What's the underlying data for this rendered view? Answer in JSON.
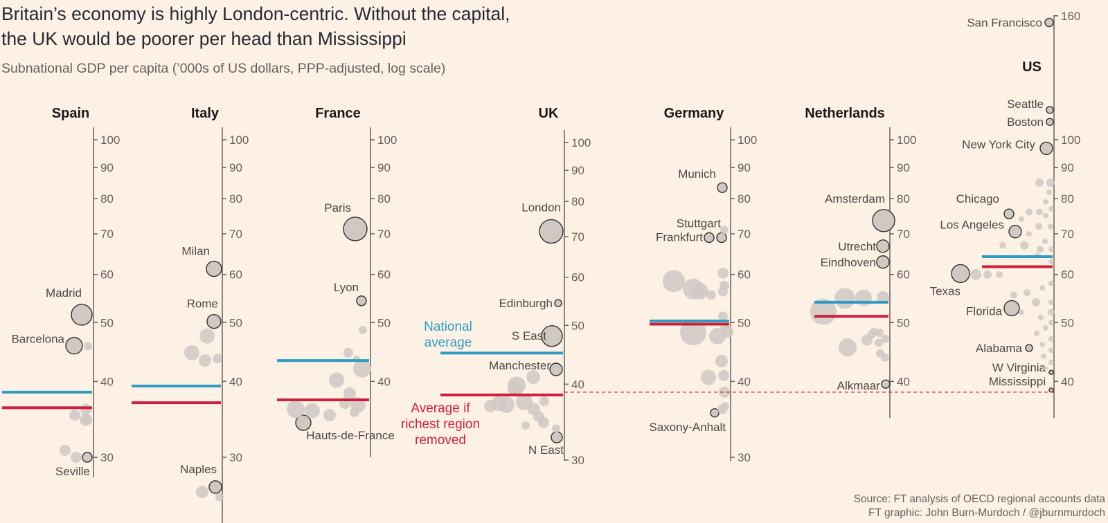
{
  "title_lines": [
    "Britain’s economy is highly London-centric. Without the capital,",
    "the UK would be poorer per head than Mississippi"
  ],
  "subtitle": "Subnational GDP per capita (’000s of US dollars, PPP-adjusted, log scale)",
  "source_lines": [
    "Source: FT analysis of OECD regional accounts data",
    "FT graphic: John Burn-Murdoch / @jburnmurdoch"
  ],
  "colors": {
    "national_average": "#2e9cc4",
    "average_without_richest": "#cc1f3d",
    "bubble_labelled": "#cfc8c3",
    "bubble_unlabelled": "#cfc8c3",
    "axis": "#66605c",
    "background": "#fdf1e5"
  },
  "legend": {
    "national_average": [
      "National",
      "average"
    ],
    "average_without_richest": [
      "Average if",
      "richest region",
      "removed"
    ]
  },
  "chart_data": {
    "type": "scatter",
    "scale": "log",
    "ylabel": "Subnational GDP per capita (’000s of US dollars, PPP-adjusted, log scale)",
    "reference_line": {
      "description": "UK average if richest region removed",
      "value": 38.4
    },
    "panels": [
      {
        "country": "Spain",
        "ticks": [
          30,
          40,
          50,
          60,
          70,
          80,
          90,
          100
        ],
        "national_average": 38.4,
        "average_without_richest": 36.2,
        "regions": [
          {
            "name": "Madrid",
            "value": 51.5,
            "size": 15
          },
          {
            "name": "Barcelona",
            "value": 45.8,
            "size": 12
          },
          {
            "name": "Seville",
            "value": 30,
            "size": 7
          },
          {
            "name": "",
            "value": 45.7,
            "size": 6
          },
          {
            "name": "",
            "value": 36,
            "size": 8
          },
          {
            "name": "",
            "value": 35.2,
            "size": 8
          },
          {
            "name": "",
            "value": 34.6,
            "size": 7
          },
          {
            "name": "",
            "value": 34.6,
            "size": 9
          },
          {
            "name": "",
            "value": 30.8,
            "size": 8
          },
          {
            "name": "",
            "value": 30,
            "size": 8
          }
        ]
      },
      {
        "country": "Italy",
        "ticks": [
          30,
          40,
          50,
          60,
          70,
          80,
          90,
          100
        ],
        "national_average": 39.3,
        "average_without_richest": 36.9,
        "regions": [
          {
            "name": "Milan",
            "value": 61.3,
            "size": 11
          },
          {
            "name": "Rome",
            "value": 50.2,
            "size": 10
          },
          {
            "name": "Naples",
            "value": 26.8,
            "size": 9
          },
          {
            "name": "",
            "value": 47.5,
            "size": 11
          },
          {
            "name": "",
            "value": 44.6,
            "size": 11
          },
          {
            "name": "",
            "value": 43.3,
            "size": 9
          },
          {
            "name": "",
            "value": 43.6,
            "size": 7
          },
          {
            "name": "",
            "value": 26.3,
            "size": 9
          },
          {
            "name": "",
            "value": 25.8,
            "size": 6
          }
        ]
      },
      {
        "country": "France",
        "ticks": [
          40,
          50,
          60,
          70,
          80,
          90,
          100
        ],
        "national_average": 43.3,
        "average_without_richest": 37.3,
        "regions": [
          {
            "name": "Paris",
            "value": 71.3,
            "size": 17
          },
          {
            "name": "Lyon",
            "value": 54.3,
            "size": 7
          },
          {
            "name": "Hauts-de-France",
            "value": 34.2,
            "size": 11
          },
          {
            "name": "",
            "value": 48.6,
            "size": 6
          },
          {
            "name": "",
            "value": 44.6,
            "size": 7
          },
          {
            "name": "",
            "value": 43.6,
            "size": 5
          },
          {
            "name": "",
            "value": 42,
            "size": 13
          },
          {
            "name": "",
            "value": 40.2,
            "size": 11
          },
          {
            "name": "",
            "value": 38.2,
            "size": 9
          },
          {
            "name": "",
            "value": 36.6,
            "size": 11
          },
          {
            "name": "",
            "value": 36,
            "size": 13
          },
          {
            "name": "",
            "value": 35.8,
            "size": 11
          },
          {
            "name": "",
            "value": 35.2,
            "size": 9
          },
          {
            "name": "",
            "value": 36.8,
            "size": 8
          },
          {
            "name": "",
            "value": 35.6,
            "size": 7
          }
        ]
      },
      {
        "country": "UK",
        "ticks": [
          30,
          40,
          50,
          60,
          70,
          80,
          90,
          100
        ],
        "national_average": 45,
        "average_without_richest": 38.4,
        "regions": [
          {
            "name": "London",
            "value": 71.4,
            "size": 17
          },
          {
            "name": "Edinburgh",
            "value": 54.4,
            "size": 5
          },
          {
            "name": "S East",
            "value": 48,
            "size": 15
          },
          {
            "name": "Manchester",
            "value": 42.3,
            "size": 9
          },
          {
            "name": "N East",
            "value": 32.7,
            "size": 8
          },
          {
            "name": "",
            "value": 39.8,
            "size": 13
          },
          {
            "name": "",
            "value": 41.1,
            "size": 10
          },
          {
            "name": "",
            "value": 39.3,
            "size": 11
          },
          {
            "name": "",
            "value": 37.2,
            "size": 11
          },
          {
            "name": "",
            "value": 37,
            "size": 12
          },
          {
            "name": "",
            "value": 37.4,
            "size": 12
          },
          {
            "name": "",
            "value": 36.8,
            "size": 9
          },
          {
            "name": "",
            "value": 36.4,
            "size": 9
          },
          {
            "name": "",
            "value": 35.4,
            "size": 8
          },
          {
            "name": "",
            "value": 34.6,
            "size": 8
          },
          {
            "name": "",
            "value": 37.5,
            "size": 7
          },
          {
            "name": "",
            "value": 34.2,
            "size": 6
          },
          {
            "name": "",
            "value": 33.8,
            "size": 6
          }
        ]
      },
      {
        "country": "Germany",
        "ticks": [
          30,
          40,
          50,
          60,
          70,
          80,
          90,
          100
        ],
        "national_average": 50.3,
        "average_without_richest": 49.7,
        "regions": [
          {
            "name": "Munich",
            "value": 83.4,
            "size": 7
          },
          {
            "name": "Stuttgart",
            "value": 69,
            "size": 7
          },
          {
            "name": "Frankfurt",
            "value": 69,
            "size": 7
          },
          {
            "name": "Saxony-Anhalt",
            "value": 35.5,
            "size": 6
          },
          {
            "name": "",
            "value": 71,
            "size": 6
          },
          {
            "name": "",
            "value": 60.3,
            "size": 8
          },
          {
            "name": "",
            "value": 58.5,
            "size": 16
          },
          {
            "name": "",
            "value": 56.8,
            "size": 15
          },
          {
            "name": "",
            "value": 56.3,
            "size": 12
          },
          {
            "name": "",
            "value": 55.5,
            "size": 7
          },
          {
            "name": "",
            "value": 56.2,
            "size": 7
          },
          {
            "name": "",
            "value": 57.5,
            "size": 7
          },
          {
            "name": "",
            "value": 51.2,
            "size": 7
          },
          {
            "name": "",
            "value": 48.2,
            "size": 19
          },
          {
            "name": "",
            "value": 47.5,
            "size": 12
          },
          {
            "name": "",
            "value": 48.3,
            "size": 9
          },
          {
            "name": "",
            "value": 49,
            "size": 6
          },
          {
            "name": "",
            "value": 43.2,
            "size": 9
          },
          {
            "name": "",
            "value": 40.6,
            "size": 11
          },
          {
            "name": "",
            "value": 40.9,
            "size": 8
          },
          {
            "name": "",
            "value": 38.4,
            "size": 8
          },
          {
            "name": "",
            "value": 36.4,
            "size": 6
          },
          {
            "name": "",
            "value": 36,
            "size": 7
          }
        ]
      },
      {
        "country": "Netherlands",
        "ticks": [
          40,
          50,
          60,
          70,
          80,
          90,
          100
        ],
        "national_average": 54,
        "average_without_richest": 51.2,
        "regions": [
          {
            "name": "Amsterdam",
            "value": 73.6,
            "size": 16
          },
          {
            "name": "Utrecht",
            "value": 66.8,
            "size": 9
          },
          {
            "name": "Eindhoven",
            "value": 62.9,
            "size": 9
          },
          {
            "name": "Alkmaar",
            "value": 39.6,
            "size": 6
          },
          {
            "name": "",
            "value": 52.1,
            "size": 19
          },
          {
            "name": "",
            "value": 54.8,
            "size": 15
          },
          {
            "name": "",
            "value": 54.9,
            "size": 12
          },
          {
            "name": "",
            "value": 55,
            "size": 9
          },
          {
            "name": "",
            "value": 45.5,
            "size": 13
          },
          {
            "name": "",
            "value": 46.8,
            "size": 8
          },
          {
            "name": "",
            "value": 47.8,
            "size": 6
          },
          {
            "name": "",
            "value": 48.1,
            "size": 6
          },
          {
            "name": "",
            "value": 46.3,
            "size": 6
          },
          {
            "name": "",
            "value": 43.8,
            "size": 6
          },
          {
            "name": "",
            "value": 44.5,
            "size": 6
          },
          {
            "name": "",
            "value": 48.3,
            "size": 6
          },
          {
            "name": "",
            "value": 47,
            "size": 6
          }
        ]
      },
      {
        "country": "US",
        "ticks": [
          40,
          50,
          60,
          70,
          80,
          90,
          100,
          160
        ],
        "national_average": 64.2,
        "average_without_richest": 61.8,
        "regions": [
          {
            "name": "San Francisco",
            "value": 156,
            "size": 6
          },
          {
            "name": "Seattle",
            "value": 112,
            "size": 5
          },
          {
            "name": "Boston",
            "value": 107,
            "size": 5
          },
          {
            "name": "New York City",
            "value": 96.8,
            "size": 9
          },
          {
            "name": "Chicago",
            "value": 75.5,
            "size": 7
          },
          {
            "name": "Los Angeles",
            "value": 70.6,
            "size": 9
          },
          {
            "name": "Texas",
            "value": 60.2,
            "size": 13
          },
          {
            "name": "Florida",
            "value": 52.8,
            "size": 11
          },
          {
            "name": "Alabama",
            "value": 45.4,
            "size": 5
          },
          {
            "name": "W Virginia",
            "value": 41.4,
            "size": 3
          },
          {
            "name": "Mississippi",
            "value": 38.7,
            "size": 3
          },
          {
            "name": "",
            "value": 85,
            "size": 6
          },
          {
            "name": "",
            "value": 85,
            "size": 6
          },
          {
            "name": "",
            "value": 82,
            "size": 4
          },
          {
            "name": "",
            "value": 79,
            "size": 4
          },
          {
            "name": "",
            "value": 77,
            "size": 4
          },
          {
            "name": "",
            "value": 76,
            "size": 5
          },
          {
            "name": "",
            "value": 76,
            "size": 5
          },
          {
            "name": "",
            "value": 75,
            "size": 4
          },
          {
            "name": "",
            "value": 74,
            "size": 4
          },
          {
            "name": "",
            "value": 72,
            "size": 5
          },
          {
            "name": "",
            "value": 72,
            "size": 4
          },
          {
            "name": "",
            "value": 70,
            "size": 4
          },
          {
            "name": "",
            "value": 70,
            "size": 5
          },
          {
            "name": "",
            "value": 68,
            "size": 4
          },
          {
            "name": "",
            "value": 67,
            "size": 6
          },
          {
            "name": "",
            "value": 67,
            "size": 5
          },
          {
            "name": "",
            "value": 66,
            "size": 5
          },
          {
            "name": "",
            "value": 66,
            "size": 4
          },
          {
            "name": "",
            "value": 64.5,
            "size": 4
          },
          {
            "name": "",
            "value": 63,
            "size": 4
          },
          {
            "name": "",
            "value": 60,
            "size": 8
          },
          {
            "name": "",
            "value": 60,
            "size": 6
          },
          {
            "name": "",
            "value": 60,
            "size": 5
          },
          {
            "name": "",
            "value": 58,
            "size": 4
          },
          {
            "name": "",
            "value": 57,
            "size": 4
          },
          {
            "name": "",
            "value": 56,
            "size": 5
          },
          {
            "name": "",
            "value": 55.5,
            "size": 5
          },
          {
            "name": "",
            "value": 54,
            "size": 4
          },
          {
            "name": "",
            "value": 54,
            "size": 6
          },
          {
            "name": "",
            "value": 52,
            "size": 4
          },
          {
            "name": "",
            "value": 52,
            "size": 5
          },
          {
            "name": "",
            "value": 51,
            "size": 4
          },
          {
            "name": "",
            "value": 50,
            "size": 4
          },
          {
            "name": "",
            "value": 49,
            "size": 4
          },
          {
            "name": "",
            "value": 48,
            "size": 4
          },
          {
            "name": "",
            "value": 47,
            "size": 4
          },
          {
            "name": "",
            "value": 46,
            "size": 4
          },
          {
            "name": "",
            "value": 45,
            "size": 4
          },
          {
            "name": "",
            "value": 44,
            "size": 4
          },
          {
            "name": "",
            "value": 43,
            "size": 4
          },
          {
            "name": "",
            "value": 42,
            "size": 3
          }
        ]
      }
    ]
  }
}
